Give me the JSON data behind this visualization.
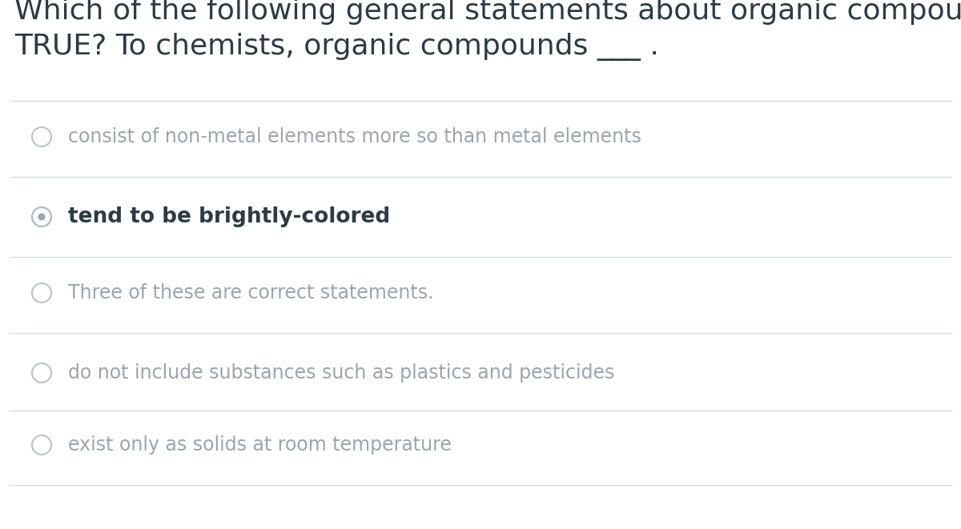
{
  "background_color": "#ffffff",
  "title_line1": "Which of the following general statements about organic compounds is",
  "title_line2": "TRUE? To chemists, organic compounds ___ .",
  "title_color": "#2d3b45",
  "title_fontsize": 26,
  "options": [
    {
      "text": "consist of non-metal elements more so than metal elements",
      "selected": false,
      "text_color": "#9aa5ae",
      "font_weight": "normal",
      "fontsize": 17
    },
    {
      "text": "tend to be brightly-colored",
      "selected": true,
      "text_color": "#2d3b45",
      "font_weight": "bold",
      "fontsize": 19
    },
    {
      "text": "Three of these are correct statements.",
      "selected": false,
      "text_color": "#9aa5ae",
      "font_weight": "normal",
      "fontsize": 17
    },
    {
      "text": "do not include substances such as plastics and pesticides",
      "selected": false,
      "text_color": "#9aa5ae",
      "font_weight": "normal",
      "fontsize": 17
    },
    {
      "text": "exist only as solids at room temperature",
      "selected": false,
      "text_color": "#9aa5ae",
      "font_weight": "normal",
      "fontsize": 17
    }
  ],
  "divider_color": "#d6dadc",
  "radio_unselected_edge": "#b8c4cc",
  "radio_selected_edge": "#aab8c2",
  "radio_unselected_fill": "#ffffff",
  "radio_selected_outer_fill": "#ffffff",
  "radio_inner_dot_color": "#9aa5ae"
}
